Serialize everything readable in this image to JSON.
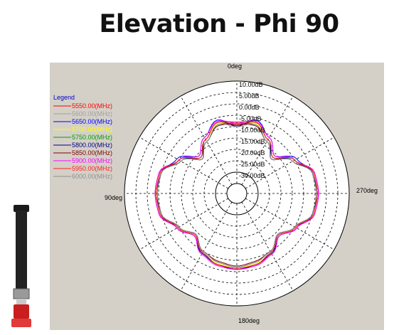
{
  "title": "Elevation - Phi 90",
  "chart_data": {
    "type": "polar-line",
    "title": "",
    "angle_labels": {
      "top": "0deg",
      "left": "90deg",
      "right": "270deg",
      "bottom": "180deg"
    },
    "radial_ticks": [
      "10.00dB",
      "5.00dB",
      "0.00dB",
      "-5.00dB",
      "-10.00dB",
      "-15.00dB",
      "-20.00dB",
      "-25.00dB",
      "-30.00dB"
    ],
    "radial_range_db": [
      -35,
      10
    ],
    "grid": true,
    "legend": {
      "title": "Legend",
      "placement": "top-left"
    },
    "angles_deg": [
      0,
      15,
      30,
      45,
      60,
      75,
      90,
      105,
      120,
      135,
      150,
      165,
      180,
      195,
      210,
      225,
      240,
      255,
      270,
      285,
      300,
      315,
      330,
      345
    ],
    "series": [
      {
        "name": "5550.00(MHz)",
        "color": "#ff0000",
        "values_db": [
          -8,
          -7,
          -12,
          -17,
          -10,
          -4,
          -3.5,
          -4,
          -9,
          -13,
          -9,
          -7,
          -6,
          -7,
          -9,
          -13,
          -9,
          -4,
          -3.5,
          -4,
          -10,
          -17,
          -12,
          -7
        ]
      },
      {
        "name": "5600.00(MHz)",
        "color": "#a0a0a0",
        "values_db": [
          -9,
          -8,
          -13,
          -18,
          -11,
          -4.5,
          -4,
          -4.5,
          -10,
          -14,
          -10,
          -8,
          -7,
          -8,
          -10,
          -14,
          -10,
          -4.5,
          -4,
          -4.5,
          -11,
          -18,
          -13,
          -8
        ]
      },
      {
        "name": "5650.00(MHz)",
        "color": "#0000ff",
        "values_db": [
          -10,
          -6,
          -11,
          -16,
          -9,
          -5,
          -4,
          -5,
          -10,
          -14,
          -9,
          -7,
          -6.5,
          -7,
          -9,
          -14,
          -10,
          -5,
          -4,
          -5,
          -9,
          -16,
          -11,
          -6
        ]
      },
      {
        "name": "5700.00(MHz)",
        "color": "#ffff00",
        "values_db": [
          -9,
          -7.5,
          -12,
          -17,
          -10,
          -4.5,
          -4,
          -4.5,
          -10,
          -13,
          -9,
          -7.5,
          -6.5,
          -7.5,
          -9,
          -13,
          -10,
          -4.5,
          -4,
          -4.5,
          -10,
          -17,
          -12,
          -7.5
        ]
      },
      {
        "name": "5750.00(MHz)",
        "color": "#00a000",
        "values_db": [
          -8.5,
          -8,
          -13,
          -17,
          -11,
          -5,
          -4.5,
          -5,
          -10,
          -14,
          -10,
          -8,
          -7,
          -8,
          -10,
          -14,
          -10,
          -5,
          -4.5,
          -5,
          -11,
          -17,
          -13,
          -8
        ]
      },
      {
        "name": "5800.00(MHz)",
        "color": "#000080",
        "values_db": [
          -9.5,
          -7,
          -12,
          -18,
          -10,
          -5,
          -4,
          -5,
          -9,
          -13,
          -9,
          -7,
          -6,
          -7,
          -9,
          -13,
          -9,
          -5,
          -4,
          -5,
          -10,
          -18,
          -12,
          -7
        ]
      },
      {
        "name": "5850.00(MHz)",
        "color": "#800000",
        "values_db": [
          -9,
          -8.5,
          -13,
          -18,
          -11,
          -4,
          -3.5,
          -4,
          -10,
          -14,
          -10,
          -8.5,
          -7.5,
          -8.5,
          -10,
          -14,
          -10,
          -4,
          -3.5,
          -4,
          -11,
          -18,
          -13,
          -8.5
        ]
      },
      {
        "name": "5900.00(MHz)",
        "color": "#ff00ff",
        "values_db": [
          -8.5,
          -6.5,
          -11,
          -16,
          -10,
          -4,
          -3.5,
          -4,
          -9,
          -13,
          -8.5,
          -6.5,
          -6,
          -6.5,
          -8.5,
          -13,
          -9,
          -4,
          -3.5,
          -4,
          -10,
          -16,
          -11,
          -6.5
        ]
      },
      {
        "name": "5950.00(MHz)",
        "color": "#ff2020",
        "values_db": [
          -9,
          -7,
          -12,
          -17,
          -10,
          -4.5,
          -4,
          -4.5,
          -9.5,
          -13.5,
          -9.5,
          -7,
          -6.5,
          -7,
          -9.5,
          -13.5,
          -9.5,
          -4.5,
          -4,
          -4.5,
          -10,
          -17,
          -12,
          -7
        ]
      },
      {
        "name": "6000.00(MHz)",
        "color": "#909090",
        "values_db": [
          -10,
          -8,
          -13,
          -18,
          -11,
          -5,
          -4.5,
          -5,
          -10,
          -14,
          -10,
          -8,
          -7,
          -8,
          -10,
          -14,
          -10,
          -5,
          -4.5,
          -5,
          -11,
          -18,
          -13,
          -8
        ]
      }
    ]
  }
}
